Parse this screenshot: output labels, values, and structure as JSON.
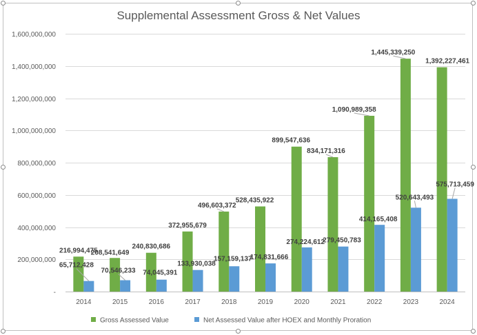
{
  "chart_data": {
    "type": "bar",
    "title": "Supplemental Assessment Gross & Net Values",
    "xlabel": "",
    "ylabel": "",
    "categories": [
      "2014",
      "2015",
      "2016",
      "2017",
      "2018",
      "2019",
      "2020",
      "2021",
      "2022",
      "2023",
      "2024"
    ],
    "series": [
      {
        "name": "Gross Assessed Value",
        "color": "#70ad47",
        "values": [
          216994475,
          208541649,
          240830686,
          372955679,
          496603372,
          528435922,
          899547636,
          834171316,
          1090989358,
          1445339250,
          1392227461
        ],
        "labels": [
          "216,994,475",
          "208,541,649",
          "240,830,686",
          "372,955,679",
          "496,603,372",
          "528,435,922",
          "899,547,636",
          "834,171,316",
          "1,090,989,358",
          "1,445,339,250",
          "1,392,227,461"
        ]
      },
      {
        "name": "Net Assessed Value after HOEX and Monthly Proration",
        "color": "#5b9bd5",
        "values": [
          65712428,
          70546233,
          74045391,
          133930038,
          157159137,
          174831666,
          274224612,
          279450783,
          414165408,
          520643493,
          575713459
        ],
        "labels": [
          "65,712,428",
          "70,546,233",
          "74,045,391",
          "133,930,038",
          "157,159,137",
          "174,831,666",
          "274,224,612",
          "279,450,783",
          "414,165,408",
          "520,643,493",
          "575,713,459"
        ]
      }
    ],
    "ylim": [
      0,
      1600000000
    ],
    "yticks": [
      0,
      200000000,
      400000000,
      600000000,
      800000000,
      1000000000,
      1200000000,
      1400000000,
      1600000000
    ],
    "ytick_labels": [
      "-",
      "200,000,000",
      "400,000,000",
      "600,000,000",
      "800,000,000",
      "1,000,000,000",
      "1,200,000,000",
      "1,400,000,000",
      "1,600,000,000"
    ],
    "grid": true,
    "legend_position": "bottom"
  }
}
